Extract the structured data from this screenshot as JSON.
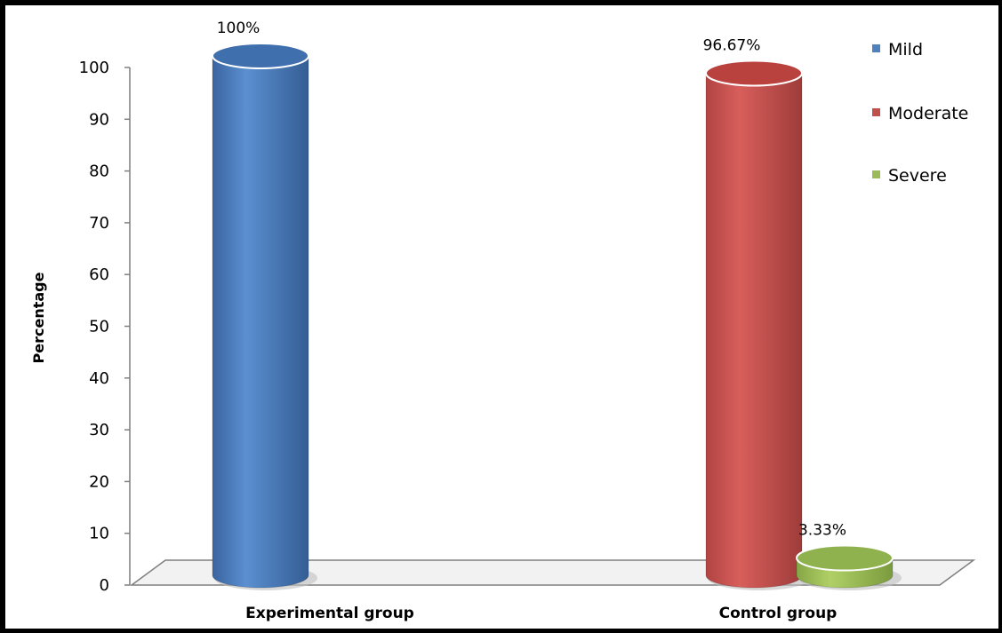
{
  "chart_data": {
    "type": "bar",
    "categories": [
      "Experimental group",
      "Control group"
    ],
    "series": [
      {
        "name": "Mild",
        "values": [
          100,
          0
        ],
        "color": "#4f81bd",
        "data_labels": [
          "100%",
          ""
        ]
      },
      {
        "name": "Moderate",
        "values": [
          0,
          96.67
        ],
        "color": "#c0504d",
        "data_labels": [
          "",
          "96.67%"
        ]
      },
      {
        "name": "Severe",
        "values": [
          0,
          3.33
        ],
        "color": "#9bbb59",
        "data_labels": [
          "",
          "3.33%"
        ]
      }
    ],
    "title": "",
    "xlabel": "",
    "ylabel": "Percentage",
    "ylim": [
      0,
      100
    ],
    "yticks": [
      "0",
      "10",
      "20",
      "30",
      "40",
      "50",
      "60",
      "70",
      "80",
      "90",
      "100"
    ],
    "grid": false,
    "legend_position": "top-right",
    "style": "3d-cylinder"
  }
}
